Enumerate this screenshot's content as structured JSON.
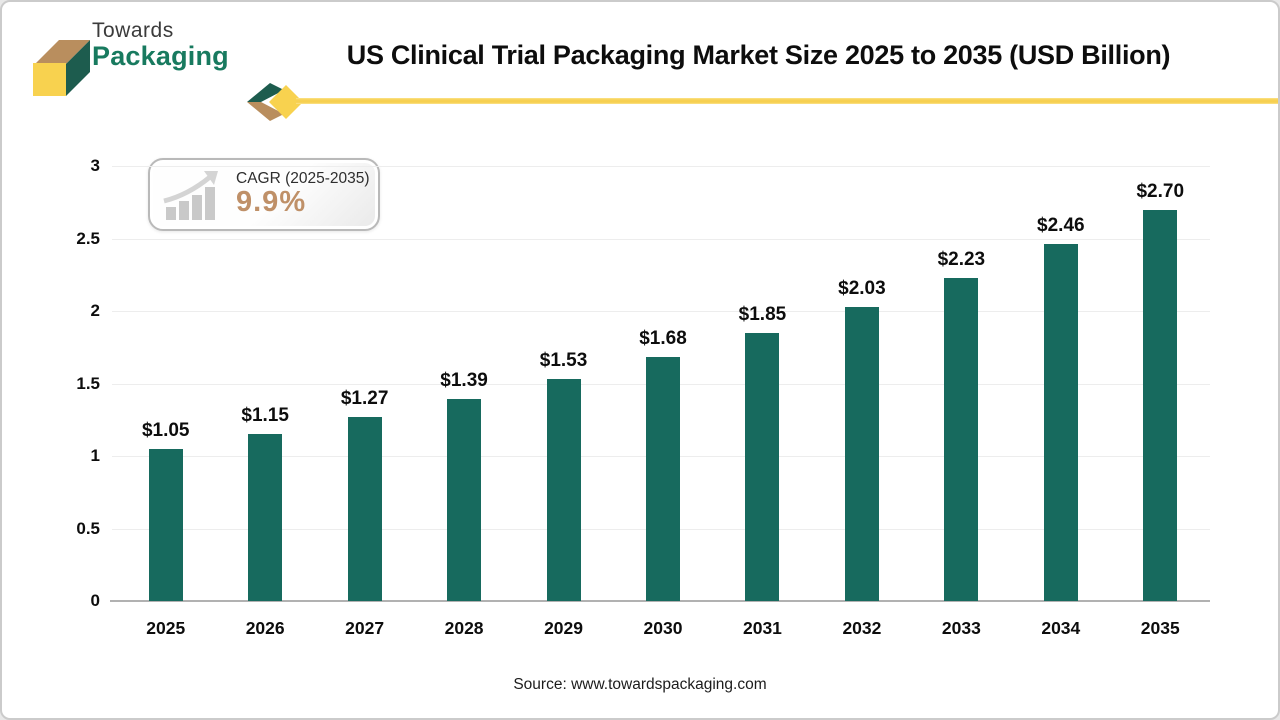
{
  "header": {
    "logo": {
      "line1": "Towards",
      "line2": "Packaging"
    },
    "title": "US Clinical Trial Packaging Market Size 2025 to 2035 (USD Billion)"
  },
  "badge": {
    "label": "CAGR (2025-2035)",
    "value": "9.9%"
  },
  "footer": {
    "source": "Source: www.towardspackaging.com"
  },
  "colors": {
    "bar": "#176a5e",
    "accent_yellow": "#f7d155",
    "accent_tan": "#b98e5e",
    "accent_green": "#1d5c4e",
    "cagr_value": "#bf9068",
    "gridline": "#ededed",
    "baseline": "#b1b1b1"
  },
  "chart_data": {
    "type": "bar",
    "title": "US Clinical Trial Packaging Market Size 2025 to 2035 (USD Billion)",
    "categories": [
      "2025",
      "2026",
      "2027",
      "2028",
      "2029",
      "2030",
      "2031",
      "2032",
      "2033",
      "2034",
      "2035"
    ],
    "values": [
      1.05,
      1.15,
      1.27,
      1.39,
      1.53,
      1.68,
      1.85,
      2.03,
      2.23,
      2.46,
      2.7
    ],
    "value_labels": [
      "$1.05",
      "$1.15",
      "$1.27",
      "$1.39",
      "$1.53",
      "$1.68",
      "$1.85",
      "$2.03",
      "$2.23",
      "$2.46",
      "$2.70"
    ],
    "xlabel": "",
    "ylabel": "",
    "ylim": [
      0,
      3
    ],
    "yticks": [
      0,
      0.5,
      1,
      1.5,
      2,
      2.5,
      3
    ],
    "ytick_labels": [
      "0",
      "0.5",
      "1",
      "1.5",
      "2",
      "2.5",
      "3"
    ],
    "grid": true,
    "legend": "none",
    "bar_color": "#176a5e"
  }
}
